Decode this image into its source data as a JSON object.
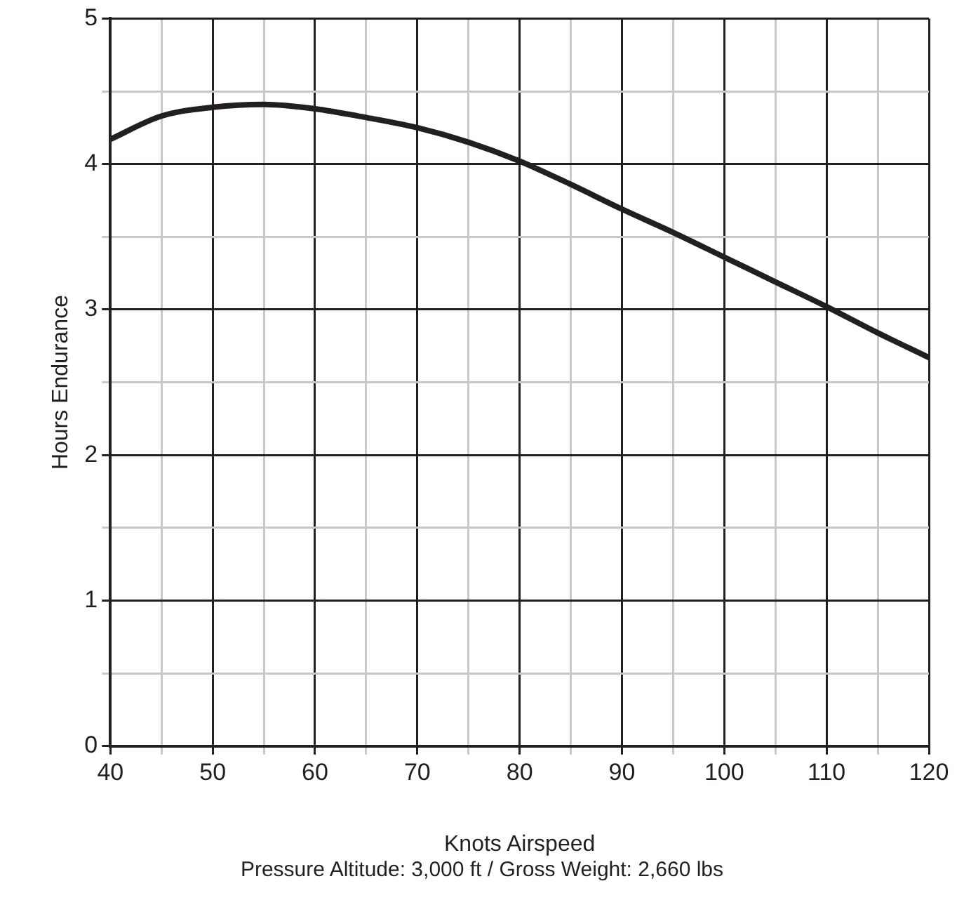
{
  "chart_data": {
    "type": "line",
    "xlabel": "Knots Airspeed",
    "ylabel": "Hours Endurance",
    "annotations": [
      "Pressure Altitude: 3,000 ft / Gross Weight: 2,660 lbs"
    ],
    "x": [
      40,
      45,
      50,
      55,
      60,
      65,
      70,
      75,
      80,
      85,
      90,
      95,
      100,
      105,
      110,
      115,
      120
    ],
    "series": [
      {
        "color": "#231f20",
        "values": [
          4.17,
          4.33,
          4.39,
          4.41,
          4.38,
          4.32,
          4.25,
          4.15,
          4.02,
          3.86,
          3.69,
          3.53,
          3.36,
          3.19,
          3.02,
          2.84,
          2.67
        ]
      }
    ],
    "xlim": [
      40,
      120
    ],
    "ylim": [
      0,
      5
    ],
    "xticks": [
      40,
      {
        "value": 45,
        "label": null
      },
      50,
      {
        "value": 55,
        "label": null
      },
      60,
      {
        "value": 65,
        "label": null
      },
      70,
      {
        "value": 75,
        "label": null
      },
      80,
      {
        "value": 85,
        "label": null
      },
      90,
      {
        "value": 95,
        "label": null
      },
      100,
      {
        "value": 105,
        "label": null
      },
      110,
      {
        "value": 115,
        "label": null
      },
      120
    ],
    "yticks": [
      0,
      {
        "value": 0.5,
        "label": null
      },
      1,
      {
        "value": 1.5,
        "label": null
      },
      2,
      {
        "value": 2.5,
        "label": null
      },
      3,
      {
        "value": 3.5,
        "label": null
      },
      4,
      {
        "value": 4.5,
        "label": null
      },
      5
    ],
    "grid": true,
    "legend": false,
    "marker": "none",
    "line_style": "solid"
  }
}
